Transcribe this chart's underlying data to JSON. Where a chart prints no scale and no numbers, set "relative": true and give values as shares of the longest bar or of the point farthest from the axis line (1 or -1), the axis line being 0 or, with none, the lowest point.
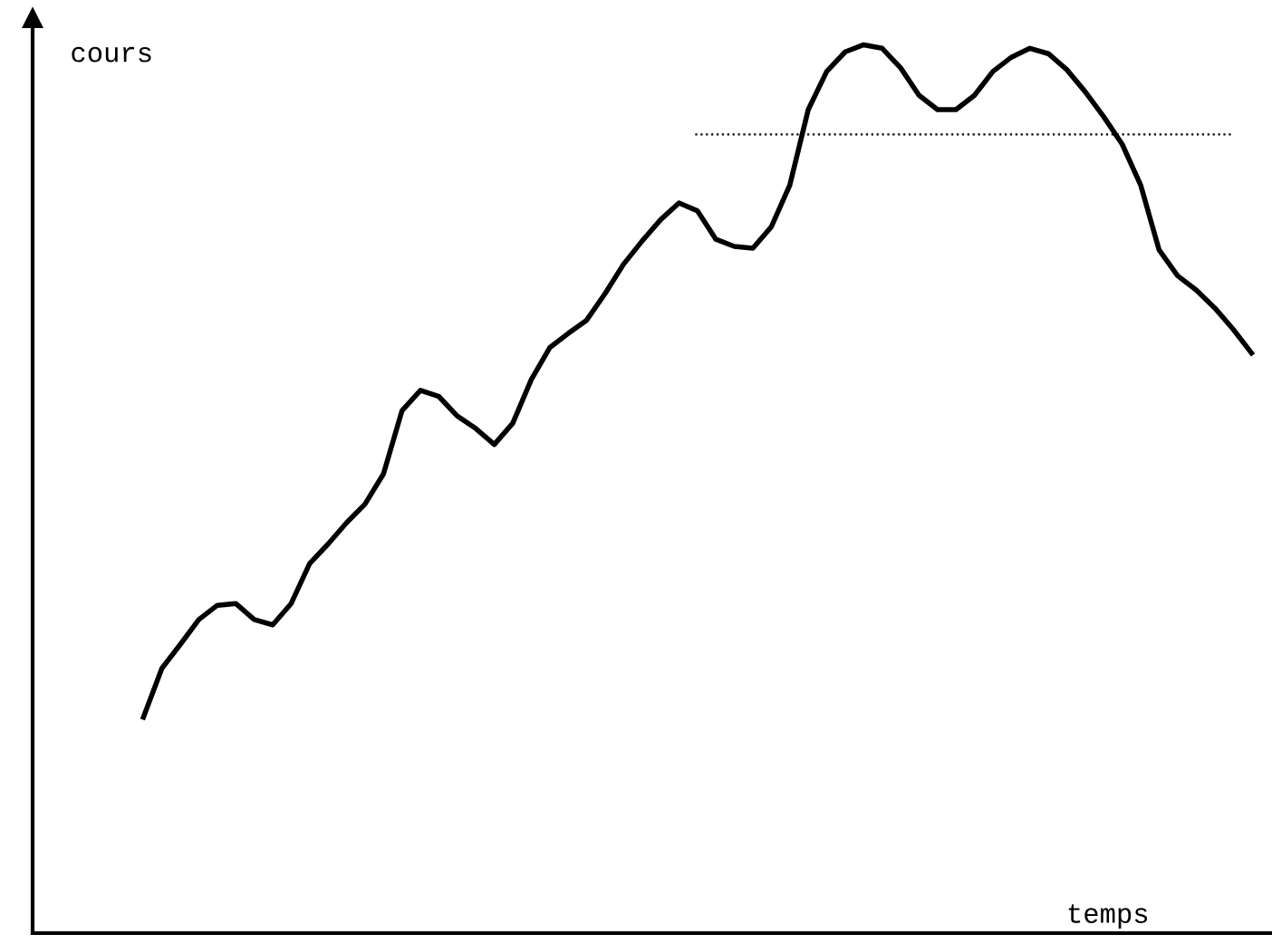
{
  "chart_data": {
    "type": "line",
    "relative": true,
    "xlabel": "temps",
    "ylabel": "cours",
    "categories": [
      null,
      null,
      null,
      null,
      null,
      null,
      null,
      null,
      null,
      null,
      null,
      null,
      null,
      null,
      null,
      null,
      null,
      null,
      null,
      null,
      null,
      null,
      null,
      null,
      null,
      null,
      null,
      null,
      null,
      null,
      null,
      null,
      null,
      null,
      null,
      null,
      null,
      null,
      null,
      null,
      null,
      null,
      null,
      null,
      null,
      null,
      null,
      null,
      null,
      null,
      null,
      null,
      null,
      null,
      null,
      null,
      null,
      null,
      null,
      null,
      null
    ],
    "series": [
      {
        "color": "#000000",
        "values": [
          0.243,
          0.298,
          0.325,
          0.353,
          0.369,
          0.371,
          0.353,
          0.347,
          0.371,
          0.416,
          0.438,
          0.462,
          0.483,
          0.517,
          0.588,
          0.611,
          0.604,
          0.582,
          0.568,
          0.55,
          0.574,
          0.623,
          0.659,
          0.675,
          0.69,
          0.72,
          0.753,
          0.779,
          0.803,
          0.822,
          0.813,
          0.781,
          0.773,
          0.771,
          0.795,
          0.842,
          0.927,
          0.97,
          0.992,
          1,
          0.996,
          0.974,
          0.943,
          0.927,
          0.927,
          0.943,
          0.97,
          0.986,
          0.996,
          0.99,
          0.972,
          0.947,
          0.919,
          0.888,
          0.842,
          0.769,
          0.74,
          0.724,
          0.704,
          0.68,
          0.653
        ]
      }
    ],
    "ref_lines": [
      {
        "axis": "y",
        "value": 0.899,
        "color": "#000000",
        "line_style": "dotted"
      }
    ],
    "marker": "none",
    "line_style": "solid"
  }
}
